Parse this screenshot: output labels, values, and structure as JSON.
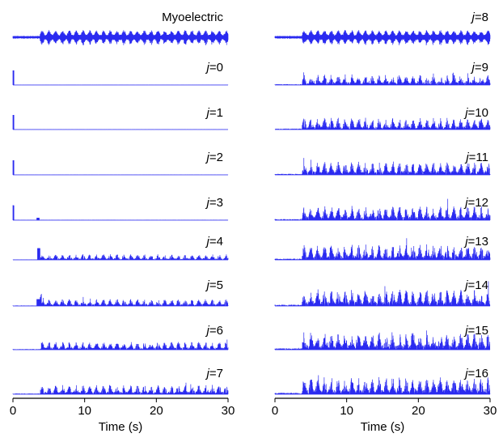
{
  "chart_data": {
    "type": "line",
    "x_unit": "s",
    "signal_color": "#2a2af0",
    "axis_color": "#000000",
    "columns": [
      {
        "xlabel": "Time (s)",
        "xlim": [
          0,
          30
        ],
        "xticks": [
          0,
          10,
          20,
          30
        ],
        "panels": [
          {
            "label": "Myoelectric",
            "italic_prefix": "",
            "rest": "Myoelectric"
          },
          {
            "label": "j=0",
            "italic_prefix": "j",
            "rest": "=0"
          },
          {
            "label": "j=1",
            "italic_prefix": "j",
            "rest": "=1"
          },
          {
            "label": "j=2",
            "italic_prefix": "j",
            "rest": "=2"
          },
          {
            "label": "j=3",
            "italic_prefix": "j",
            "rest": "=3"
          },
          {
            "label": "j=4",
            "italic_prefix": "j",
            "rest": "=4"
          },
          {
            "label": "j=5",
            "italic_prefix": "j",
            "rest": "=5"
          },
          {
            "label": "j=6",
            "italic_prefix": "j",
            "rest": "=6"
          },
          {
            "label": "j=7",
            "italic_prefix": "j",
            "rest": "=7"
          }
        ]
      },
      {
        "xlabel": "Time (s)",
        "xlim": [
          0,
          30
        ],
        "xticks": [
          0,
          10,
          20,
          30
        ],
        "panels": [
          {
            "label": "j=8",
            "italic_prefix": "j",
            "rest": "=8"
          },
          {
            "label": "j=9",
            "italic_prefix": "j",
            "rest": "=9"
          },
          {
            "label": "j=10",
            "italic_prefix": "j",
            "rest": "=10"
          },
          {
            "label": "j=11",
            "italic_prefix": "j",
            "rest": "=11"
          },
          {
            "label": "j=12",
            "italic_prefix": "j",
            "rest": "=12"
          },
          {
            "label": "j=13",
            "italic_prefix": "j",
            "rest": "=13"
          },
          {
            "label": "j=14",
            "italic_prefix": "j",
            "rest": "=14"
          },
          {
            "label": "j=15",
            "italic_prefix": "j",
            "rest": "=15"
          },
          {
            "label": "j=16",
            "italic_prefix": "j",
            "rest": "=16"
          }
        ]
      }
    ]
  }
}
